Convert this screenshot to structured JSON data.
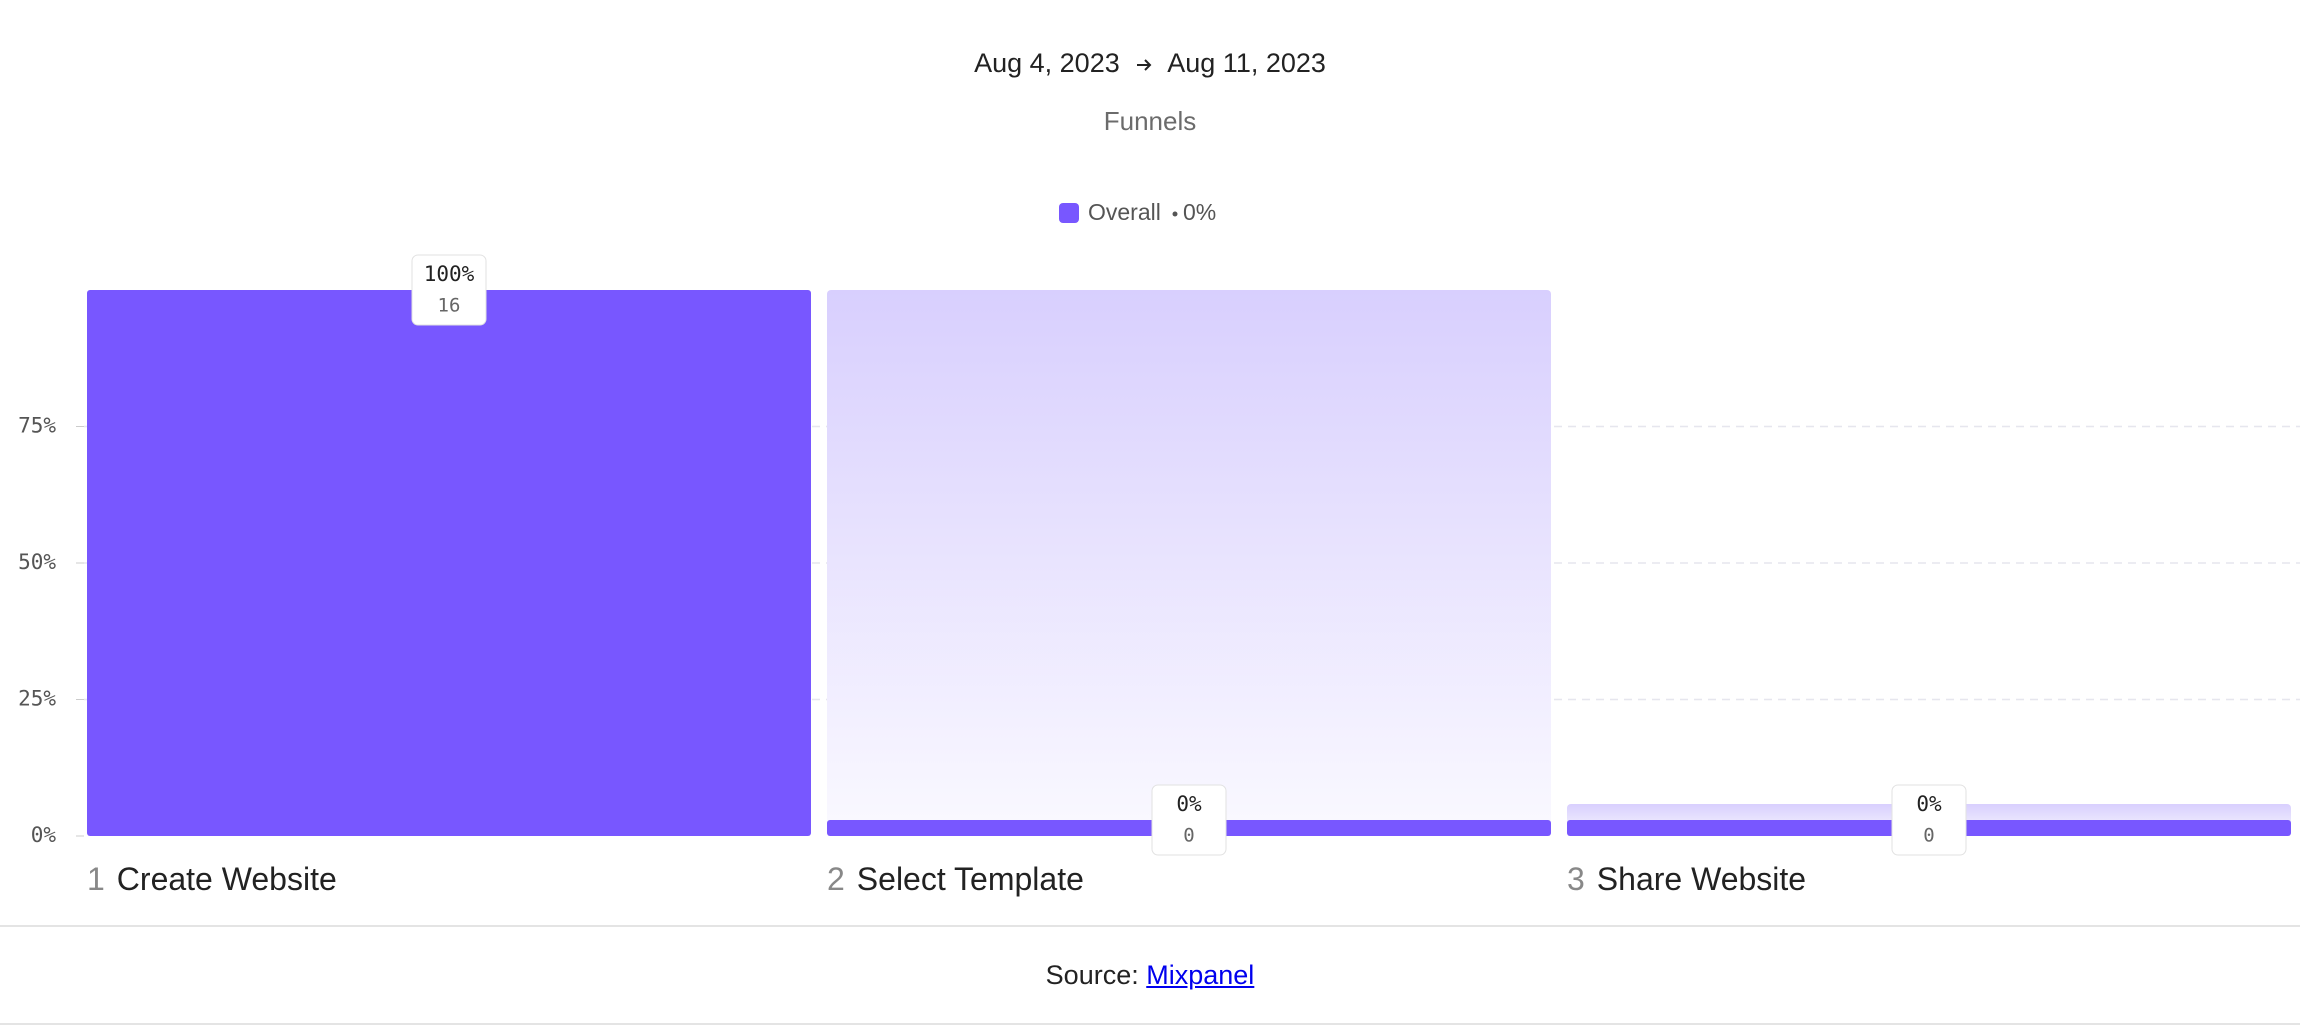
{
  "header": {
    "date_start": "Aug 4, 2023",
    "date_end": "Aug 11, 2023",
    "subtitle": "Funnels"
  },
  "chart_data": {
    "type": "funnel",
    "series_name": "Overall",
    "color": "#7857ff",
    "overall": {
      "value": 0,
      "label": "0%"
    },
    "steps": [
      "1",
      "2",
      "3"
    ],
    "categories": [
      "Create Website",
      "Select Template",
      "Share Website"
    ],
    "values": [
      100,
      0,
      0
    ],
    "value_labels": [
      "100%",
      "0%",
      "0%"
    ],
    "counts": [
      16,
      0,
      0
    ],
    "ylim": [
      0,
      100
    ],
    "yticks": [
      {
        "value": 0,
        "label": "0%"
      },
      {
        "value": 25,
        "label": "25%"
      },
      {
        "value": 50,
        "label": "50%"
      },
      {
        "value": 75,
        "label": "75%"
      }
    ],
    "grid": true
  },
  "footer": {
    "source_label": "Source:",
    "source_link": "Mixpanel"
  }
}
